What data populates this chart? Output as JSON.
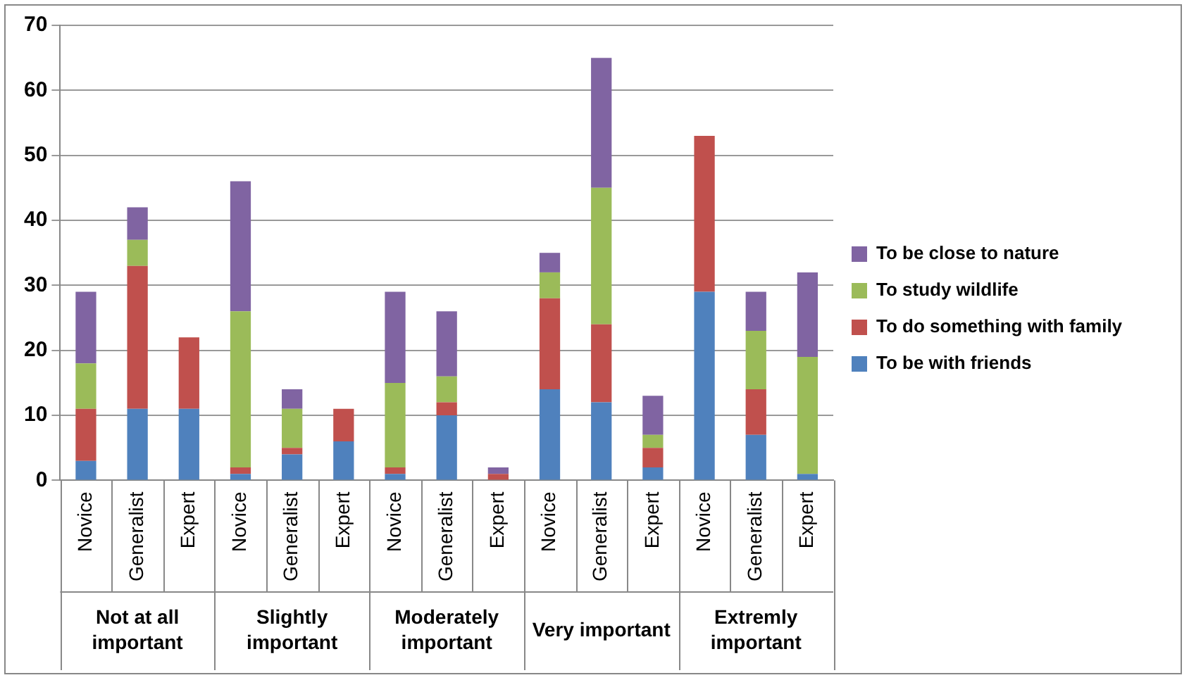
{
  "chart_data": {
    "type": "bar",
    "stacked": true,
    "grid": "y",
    "legend": "right",
    "categories": [
      "Novice",
      "Generalist",
      "Expert",
      "Novice",
      "Generalist",
      "Expert",
      "Novice",
      "Generalist",
      "Expert",
      "Novice",
      "Generalist",
      "Expert",
      "Novice",
      "Generalist",
      "Expert"
    ],
    "annotations": [
      "Not at all important",
      "Slightly important",
      "Moderately important",
      "Very important",
      "Extremly important"
    ],
    "ylim": [
      0,
      70
    ],
    "yticks": [
      0,
      10,
      20,
      30,
      40,
      50,
      60,
      70
    ],
    "series": [
      {
        "name": "To be with friends",
        "color": "#4f81bd",
        "values": [
          3,
          11,
          11,
          1,
          4,
          6,
          1,
          10,
          0,
          14,
          12,
          2,
          29,
          7,
          1
        ]
      },
      {
        "name": "To do something with family",
        "color": "#c0504d",
        "values": [
          8,
          22,
          11,
          1,
          1,
          5,
          1,
          2,
          1,
          14,
          12,
          3,
          24,
          7,
          0
        ]
      },
      {
        "name": "To study wildlife",
        "color": "#9bbb59",
        "values": [
          7,
          4,
          0,
          24,
          6,
          0,
          13,
          4,
          0,
          4,
          21,
          2,
          0,
          9,
          18
        ]
      },
      {
        "name": "To be close to nature",
        "color": "#8064a2",
        "values": [
          11,
          5,
          0,
          20,
          3,
          0,
          14,
          10,
          1,
          3,
          20,
          6,
          0,
          6,
          13
        ]
      }
    ]
  }
}
